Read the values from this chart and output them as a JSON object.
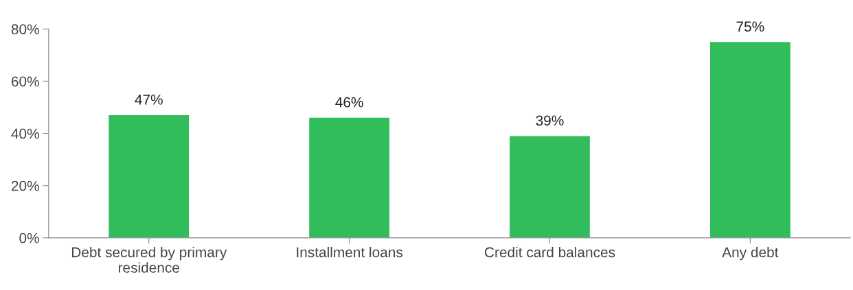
{
  "chart_data": {
    "type": "bar",
    "categories": [
      "Debt secured by primary\nresidence",
      "Installment loans",
      "Credit card balances",
      "Any debt"
    ],
    "values": [
      47,
      46,
      39,
      75
    ],
    "color": "#32bd5c",
    "ylim": [
      0,
      80
    ],
    "yticks": [
      {
        "value": 0,
        "label": "0%"
      },
      {
        "value": 20,
        "label": "20%"
      },
      {
        "value": 40,
        "label": "40%"
      },
      {
        "value": 60,
        "label": "60%"
      },
      {
        "value": 80,
        "label": "80%"
      }
    ],
    "value_labels": [
      "47%",
      "46%",
      "39%",
      "75%"
    ],
    "grid": false,
    "legend": false
  }
}
